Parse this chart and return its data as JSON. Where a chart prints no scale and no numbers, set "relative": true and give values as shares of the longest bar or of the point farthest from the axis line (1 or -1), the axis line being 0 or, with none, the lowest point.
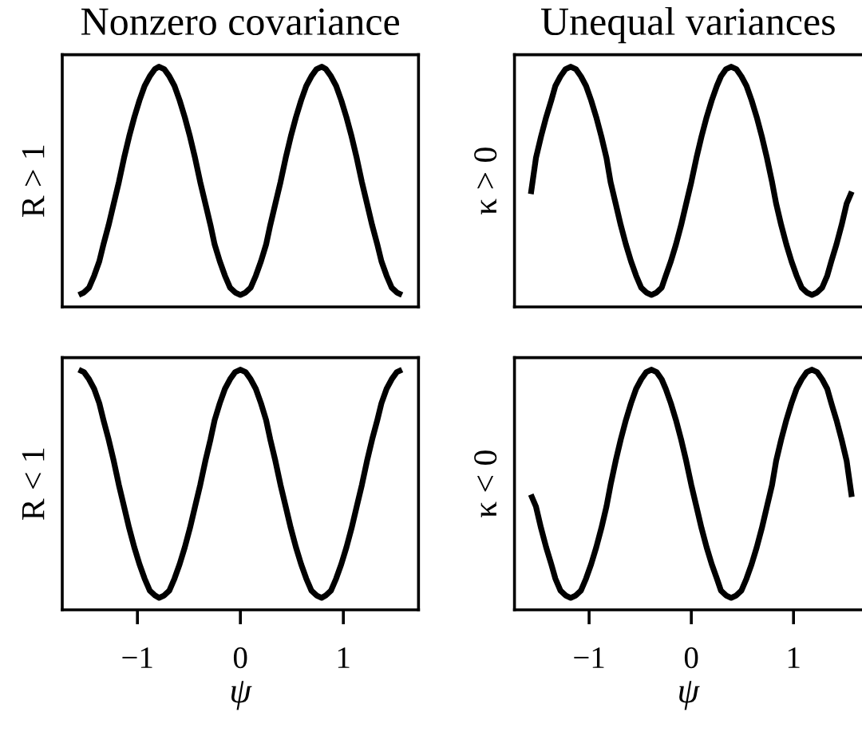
{
  "chart_data": [
    {
      "type": "line",
      "title": "Nonzero covariance",
      "ylabel": "R > 1",
      "relative": true,
      "tick_labels": false,
      "xlim": [
        -1.73,
        1.73
      ],
      "x": [
        -1.57,
        -1.52,
        -1.47,
        -1.42,
        -1.37,
        -1.33,
        -1.28,
        -1.23,
        -1.18,
        -1.13,
        -1.08,
        -1.03,
        -0.98,
        -0.93,
        -0.88,
        -0.83,
        -0.79,
        -0.74,
        -0.69,
        -0.64,
        -0.59,
        -0.54,
        -0.49,
        -0.44,
        -0.39,
        -0.34,
        -0.29,
        -0.25,
        -0.2,
        -0.15,
        -0.1,
        -0.05,
        0,
        0.05,
        0.1,
        0.15,
        0.2,
        0.25,
        0.29,
        0.34,
        0.39,
        0.44,
        0.49,
        0.54,
        0.59,
        0.64,
        0.69,
        0.74,
        0.79,
        0.83,
        0.88,
        0.93,
        0.98,
        1.03,
        1.08,
        1.13,
        1.18,
        1.23,
        1.28,
        1.33,
        1.37,
        1.42,
        1.47,
        1.52,
        1.57
      ],
      "series": [
        {
          "color": "#000000",
          "values": [
            0.05,
            0.06,
            0.08,
            0.13,
            0.19,
            0.26,
            0.34,
            0.43,
            0.52,
            0.62,
            0.71,
            0.79,
            0.86,
            0.92,
            0.96,
            0.99,
            1,
            0.99,
            0.96,
            0.92,
            0.86,
            0.79,
            0.71,
            0.62,
            0.52,
            0.43,
            0.34,
            0.26,
            0.19,
            0.13,
            0.08,
            0.06,
            0.05,
            0.06,
            0.08,
            0.13,
            0.19,
            0.26,
            0.34,
            0.43,
            0.52,
            0.62,
            0.71,
            0.79,
            0.86,
            0.92,
            0.96,
            0.99,
            1,
            0.99,
            0.96,
            0.92,
            0.86,
            0.79,
            0.71,
            0.62,
            0.52,
            0.43,
            0.34,
            0.26,
            0.19,
            0.13,
            0.08,
            0.06,
            0.05
          ]
        }
      ]
    },
    {
      "type": "line",
      "title": "Unequal variances",
      "ylabel": "κ > 0",
      "relative": true,
      "tick_labels": false,
      "xlim": [
        -1.73,
        1.67
      ],
      "x": [
        -1.57,
        -1.52,
        -1.47,
        -1.42,
        -1.37,
        -1.33,
        -1.28,
        -1.23,
        -1.18,
        -1.13,
        -1.08,
        -1.03,
        -0.98,
        -0.93,
        -0.88,
        -0.83,
        -0.79,
        -0.74,
        -0.69,
        -0.64,
        -0.59,
        -0.54,
        -0.49,
        -0.44,
        -0.39,
        -0.34,
        -0.29,
        -0.25,
        -0.2,
        -0.15,
        -0.1,
        -0.05,
        0,
        0.05,
        0.1,
        0.15,
        0.2,
        0.25,
        0.29,
        0.34,
        0.39,
        0.44,
        0.49,
        0.54,
        0.59,
        0.64,
        0.69,
        0.74,
        0.79,
        0.83,
        0.88,
        0.93,
        0.98,
        1.03,
        1.08,
        1.13,
        1.18,
        1.23,
        1.28,
        1.33,
        1.37,
        1.42,
        1.47,
        1.52,
        1.57
      ],
      "series": [
        {
          "color": "#000000",
          "values": [
            0.47,
            0.62,
            0.71,
            0.79,
            0.86,
            0.92,
            0.96,
            0.99,
            1,
            0.99,
            0.96,
            0.92,
            0.86,
            0.79,
            0.71,
            0.62,
            0.52,
            0.43,
            0.34,
            0.26,
            0.19,
            0.13,
            0.08,
            0.06,
            0.05,
            0.06,
            0.08,
            0.13,
            0.19,
            0.26,
            0.34,
            0.43,
            0.52,
            0.62,
            0.71,
            0.79,
            0.86,
            0.92,
            0.96,
            0.99,
            1,
            0.99,
            0.96,
            0.92,
            0.86,
            0.79,
            0.71,
            0.62,
            0.52,
            0.43,
            0.34,
            0.26,
            0.19,
            0.13,
            0.08,
            0.06,
            0.05,
            0.06,
            0.08,
            0.13,
            0.19,
            0.26,
            0.34,
            0.43,
            0.48
          ]
        }
      ]
    },
    {
      "type": "line",
      "ylabel": "R < 1",
      "xlabel": "ψ",
      "relative": true,
      "tick_labels": "x",
      "xlim": [
        -1.73,
        1.73
      ],
      "xticks": [
        {
          "value": -1,
          "label": "−1"
        },
        0,
        1
      ],
      "x": [
        -1.57,
        -1.52,
        -1.47,
        -1.42,
        -1.37,
        -1.33,
        -1.28,
        -1.23,
        -1.18,
        -1.13,
        -1.08,
        -1.03,
        -0.98,
        -0.93,
        -0.88,
        -0.83,
        -0.79,
        -0.74,
        -0.69,
        -0.64,
        -0.59,
        -0.54,
        -0.49,
        -0.44,
        -0.39,
        -0.34,
        -0.29,
        -0.25,
        -0.2,
        -0.15,
        -0.1,
        -0.05,
        0,
        0.05,
        0.1,
        0.15,
        0.2,
        0.25,
        0.29,
        0.34,
        0.39,
        0.44,
        0.49,
        0.54,
        0.59,
        0.64,
        0.69,
        0.74,
        0.79,
        0.83,
        0.88,
        0.93,
        0.98,
        1.03,
        1.08,
        1.13,
        1.18,
        1.23,
        1.28,
        1.33,
        1.37,
        1.42,
        1.47,
        1.52,
        1.57
      ],
      "series": [
        {
          "color": "#000000",
          "values": [
            1,
            0.99,
            0.96,
            0.92,
            0.86,
            0.79,
            0.71,
            0.62,
            0.52,
            0.43,
            0.34,
            0.26,
            0.19,
            0.13,
            0.08,
            0.06,
            0.05,
            0.06,
            0.08,
            0.13,
            0.19,
            0.26,
            0.34,
            0.43,
            0.52,
            0.62,
            0.71,
            0.79,
            0.86,
            0.92,
            0.96,
            0.99,
            1,
            0.99,
            0.96,
            0.92,
            0.86,
            0.79,
            0.71,
            0.62,
            0.52,
            0.43,
            0.34,
            0.26,
            0.19,
            0.13,
            0.08,
            0.06,
            0.05,
            0.06,
            0.08,
            0.13,
            0.19,
            0.26,
            0.34,
            0.43,
            0.52,
            0.62,
            0.71,
            0.79,
            0.86,
            0.92,
            0.96,
            0.99,
            1
          ]
        }
      ]
    },
    {
      "type": "line",
      "ylabel": "κ < 0",
      "xlabel": "ψ",
      "relative": true,
      "tick_labels": "x",
      "xlim": [
        -1.73,
        1.67
      ],
      "xticks": [
        {
          "value": -1,
          "label": "−1"
        },
        0,
        1
      ],
      "x": [
        -1.57,
        -1.52,
        -1.47,
        -1.42,
        -1.37,
        -1.33,
        -1.28,
        -1.23,
        -1.18,
        -1.13,
        -1.08,
        -1.03,
        -0.98,
        -0.93,
        -0.88,
        -0.83,
        -0.79,
        -0.74,
        -0.69,
        -0.64,
        -0.59,
        -0.54,
        -0.49,
        -0.44,
        -0.39,
        -0.34,
        -0.29,
        -0.25,
        -0.2,
        -0.15,
        -0.1,
        -0.05,
        0,
        0.05,
        0.1,
        0.15,
        0.2,
        0.25,
        0.29,
        0.34,
        0.39,
        0.44,
        0.49,
        0.54,
        0.59,
        0.64,
        0.69,
        0.74,
        0.79,
        0.83,
        0.88,
        0.93,
        0.98,
        1.03,
        1.08,
        1.13,
        1.18,
        1.23,
        1.28,
        1.33,
        1.37,
        1.42,
        1.47,
        1.52,
        1.57
      ],
      "series": [
        {
          "color": "#000000",
          "values": [
            0.48,
            0.43,
            0.34,
            0.26,
            0.19,
            0.13,
            0.08,
            0.06,
            0.05,
            0.06,
            0.08,
            0.13,
            0.19,
            0.26,
            0.34,
            0.43,
            0.52,
            0.62,
            0.71,
            0.79,
            0.86,
            0.92,
            0.96,
            0.99,
            1,
            0.99,
            0.96,
            0.92,
            0.86,
            0.79,
            0.71,
            0.62,
            0.52,
            0.43,
            0.34,
            0.26,
            0.19,
            0.13,
            0.08,
            0.06,
            0.05,
            0.06,
            0.08,
            0.13,
            0.19,
            0.26,
            0.34,
            0.43,
            0.52,
            0.62,
            0.71,
            0.79,
            0.86,
            0.92,
            0.96,
            0.99,
            1,
            0.99,
            0.96,
            0.92,
            0.86,
            0.79,
            0.71,
            0.62,
            0.47
          ]
        }
      ]
    }
  ]
}
